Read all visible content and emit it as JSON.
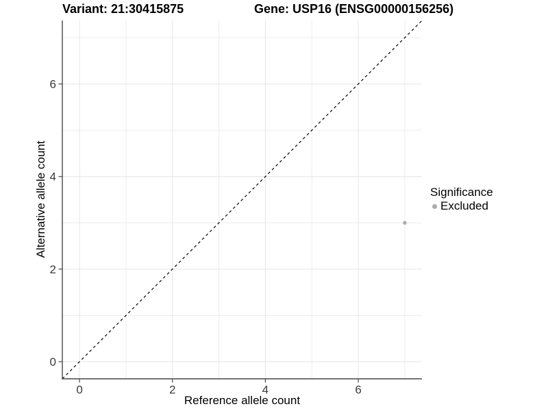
{
  "titles": {
    "variant": "Variant: 21:30415875",
    "gene": "Gene: USP16 (ENSG00000156256)"
  },
  "chart_data": {
    "type": "scatter",
    "xlabel": "Reference allele count",
    "ylabel": "Alternative allele count",
    "xlim": [
      -0.37,
      7.37
    ],
    "ylim": [
      -0.37,
      7.37
    ],
    "x_major_ticks": [
      0,
      2,
      4,
      6
    ],
    "y_major_ticks": [
      0,
      2,
      4,
      6
    ],
    "x_minor_gridlines": [
      1,
      3,
      5,
      7
    ],
    "y_minor_gridlines": [
      1,
      3,
      5,
      7
    ],
    "grid": true,
    "identity_line": {
      "style": "dashed",
      "slope": 1,
      "intercept": 0
    },
    "series": [
      {
        "name": "Excluded",
        "color": "#ababab",
        "points": [
          [
            7,
            3
          ]
        ]
      }
    ],
    "legend": {
      "title": "Significance",
      "position": "right",
      "entries": [
        {
          "label": "Excluded",
          "color": "#ababab"
        }
      ]
    },
    "style": {
      "background": "#ffffff",
      "grid_major": "#e4e4e4",
      "grid_minor": "#ececec",
      "axis_line": "#474747",
      "tick_color": "#474747",
      "tick_label_color": "#3a3a3a",
      "identity_line_color": "#000000"
    }
  }
}
